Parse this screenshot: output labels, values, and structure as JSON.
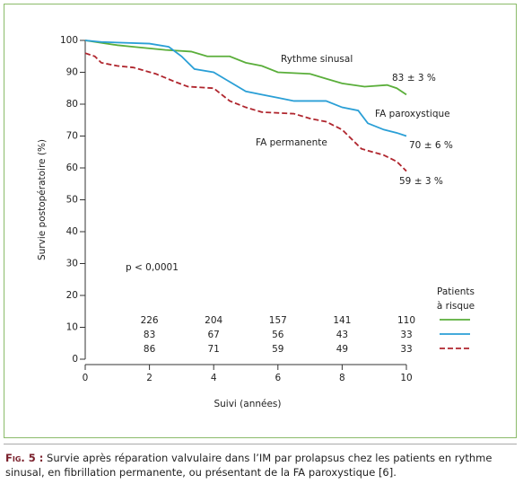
{
  "chart_data": {
    "type": "line",
    "y_label": "Survie postopératoire (%)",
    "x_label": "Suivi (années)",
    "annotation": "p < 0,0001",
    "legend_title": [
      "Patients",
      "à risque"
    ],
    "xlim": [
      0,
      10
    ],
    "xticks": [
      0,
      2,
      4,
      6,
      8,
      10
    ],
    "ylim": [
      0,
      100
    ],
    "yticks": [
      0,
      10,
      20,
      30,
      40,
      50,
      60,
      70,
      80,
      90,
      100
    ],
    "at_risk_x": [
      2,
      4,
      6,
      8,
      10
    ],
    "series": [
      {
        "name": "Rythme sinusal",
        "color": "#5aae3a",
        "dashed": false,
        "end_label": "83 ± 3 %",
        "x": [
          0,
          1,
          1.5,
          2.5,
          3.3,
          3.8,
          4.5,
          5,
          5.5,
          6,
          7,
          7.5,
          8,
          8.7,
          9.4,
          9.7,
          10
        ],
        "values": [
          100,
          98.5,
          98,
          97,
          96.5,
          95,
          95,
          93,
          92,
          90,
          89.5,
          88,
          86.5,
          85.5,
          86,
          85,
          83
        ],
        "at_risk": [
          226,
          204,
          157,
          141,
          110
        ]
      },
      {
        "name": "FA paroxystique",
        "color": "#2a9fd6",
        "dashed": false,
        "end_label": "70 ± 6 %",
        "x": [
          0,
          0.5,
          2,
          2.6,
          3,
          3.4,
          4,
          4.5,
          5,
          5.5,
          6,
          6.5,
          7.5,
          8,
          8.5,
          8.8,
          9.3,
          9.7,
          10
        ],
        "values": [
          100,
          99.5,
          99,
          98,
          95,
          91,
          90,
          87,
          84,
          83,
          82,
          81,
          81,
          79,
          78,
          74,
          72,
          71,
          70
        ],
        "at_risk": [
          83,
          67,
          56,
          43,
          33
        ]
      },
      {
        "name": "FA permanente",
        "color": "#b0262e",
        "dashed": true,
        "end_label": "59 ± 3 %",
        "x": [
          0,
          0.3,
          0.5,
          1,
          1.5,
          2.2,
          2.8,
          3.2,
          4,
          4.5,
          5,
          5.5,
          6.5,
          7,
          7.5,
          8,
          8.6,
          9.3,
          9.7,
          10
        ],
        "values": [
          96,
          95,
          93,
          92,
          91.5,
          89.5,
          87,
          85.5,
          85,
          81,
          79,
          77.5,
          77,
          75.5,
          74.5,
          72,
          66,
          64,
          62,
          59
        ],
        "at_risk": [
          86,
          71,
          59,
          49,
          33
        ]
      }
    ]
  },
  "caption": {
    "label": "Fig. 5 :",
    "text": "Survie après réparation valvulaire dans l’IM par prolapsus chez les patients en rythme sinusal, en fibrillation permanente, ou présentant de la FA paroxystique [6]."
  }
}
